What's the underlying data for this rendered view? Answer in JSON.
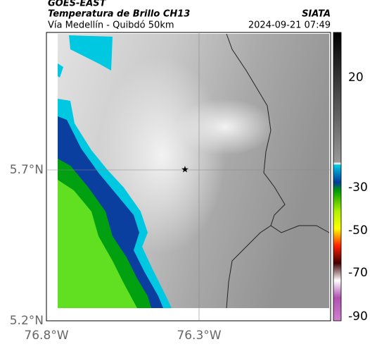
{
  "header": {
    "source": "GOES-EAST",
    "title": "Temperatura de Brillo CH13",
    "org": "SIATA",
    "subtitle": "Vía Medellín - Quibdó 50km",
    "datetime": "2024-09-21 07:49"
  },
  "map": {
    "lat_labels": [
      "5.7°N",
      "5.2°N"
    ],
    "lon_labels": [
      "76.8°W",
      "76.3°W"
    ]
  },
  "colorbar": {
    "labels": [
      "20",
      "-30",
      "-50",
      "-70",
      "-90"
    ]
  }
}
